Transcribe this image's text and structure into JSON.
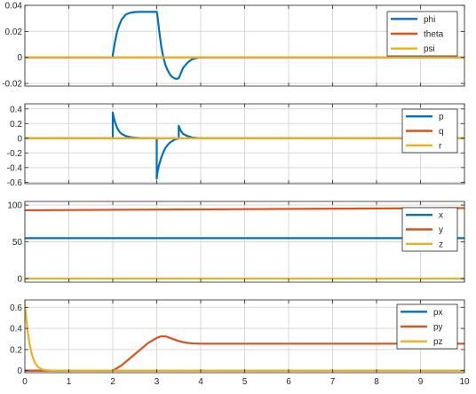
{
  "colors": {
    "series1": "#0072BD",
    "series2": "#D95319",
    "series3": "#EDB120",
    "grid": "#d9d9d9",
    "axis": "#262626"
  },
  "chart_data": [
    {
      "type": "line",
      "xlim": [
        0,
        10
      ],
      "ylim": [
        -0.022,
        0.04
      ],
      "yticks": [
        -0.02,
        0,
        0.02,
        0.04
      ],
      "ytick_labels": [
        "-0.02",
        "0",
        "0.02",
        "0.04"
      ],
      "grid": true,
      "show_xtick_labels": false,
      "legend": {
        "placement": "top-right",
        "entries": [
          "phi",
          "theta",
          "psi"
        ]
      },
      "series": [
        {
          "name": "phi",
          "color_key": "series1",
          "x": [
            0,
            2.0,
            2.0,
            2.05,
            2.1,
            2.15,
            2.2,
            2.3,
            2.4,
            2.5,
            2.6,
            2.7,
            2.8,
            2.9,
            3.0,
            3.02,
            3.05,
            3.1,
            3.15,
            3.2,
            3.25,
            3.3,
            3.35,
            3.4,
            3.45,
            3.5,
            3.55,
            3.6,
            3.7,
            3.8,
            3.9,
            4.0,
            10
          ],
          "y": [
            0,
            0,
            0.002,
            0.012,
            0.02,
            0.025,
            0.029,
            0.033,
            0.0343,
            0.0348,
            0.035,
            0.035,
            0.035,
            0.035,
            0.035,
            0.031,
            0.022,
            0.009,
            0.0,
            -0.006,
            -0.01,
            -0.013,
            -0.015,
            -0.016,
            -0.0165,
            -0.016,
            -0.012,
            -0.008,
            -0.004,
            -0.0015,
            -0.0005,
            0,
            0
          ]
        },
        {
          "name": "theta",
          "color_key": "series2",
          "x": [
            0,
            10
          ],
          "y": [
            0,
            0
          ]
        },
        {
          "name": "psi",
          "color_key": "series3",
          "x": [
            0,
            10
          ],
          "y": [
            0,
            0
          ]
        }
      ]
    },
    {
      "type": "line",
      "xlim": [
        0,
        10
      ],
      "ylim": [
        -0.62,
        0.47
      ],
      "yticks": [
        -0.6,
        -0.4,
        -0.2,
        0,
        0.2,
        0.4
      ],
      "ytick_labels": [
        "-0.6",
        "-0.4",
        "-0.2",
        "0",
        "0.2",
        "0.4"
      ],
      "grid": true,
      "show_xtick_labels": false,
      "legend": {
        "placement": "top-right",
        "entries": [
          "p",
          "q",
          "r"
        ]
      },
      "series": [
        {
          "name": "p",
          "color_key": "series1",
          "x": [
            0,
            2.0,
            2.0,
            2.02,
            2.05,
            2.1,
            2.15,
            2.2,
            2.3,
            2.4,
            2.5,
            2.6,
            2.7,
            2.8,
            2.9,
            3.0,
            3.0,
            3.02,
            3.05,
            3.1,
            3.15,
            3.2,
            3.25,
            3.3,
            3.35,
            3.4,
            3.45,
            3.5,
            3.5,
            3.52,
            3.55,
            3.6,
            3.7,
            3.8,
            3.9,
            4.0,
            10
          ],
          "y": [
            0,
            0,
            0.35,
            0.29,
            0.22,
            0.14,
            0.09,
            0.06,
            0.03,
            0.015,
            0.008,
            0.004,
            0.002,
            0.001,
            0,
            0,
            -0.55,
            -0.45,
            -0.37,
            -0.27,
            -0.19,
            -0.13,
            -0.09,
            -0.06,
            -0.04,
            -0.02,
            -0.01,
            -0.005,
            0.17,
            0.14,
            0.1,
            0.06,
            0.03,
            0.012,
            0.005,
            0,
            0
          ]
        },
        {
          "name": "q",
          "color_key": "series2",
          "x": [
            0,
            10
          ],
          "y": [
            0,
            0
          ]
        },
        {
          "name": "r",
          "color_key": "series3",
          "x": [
            0,
            10
          ],
          "y": [
            0,
            0
          ]
        }
      ]
    },
    {
      "type": "line",
      "xlim": [
        0,
        10
      ],
      "ylim": [
        -5,
        105
      ],
      "yticks": [
        0,
        50,
        100
      ],
      "ytick_labels": [
        "0",
        "50",
        "100"
      ],
      "grid": true,
      "show_xtick_labels": false,
      "legend": {
        "placement": "top-right",
        "entries": [
          "x",
          "y",
          "z"
        ]
      },
      "series": [
        {
          "name": "x",
          "color_key": "series1",
          "x": [
            0,
            10
          ],
          "y": [
            55,
            55
          ]
        },
        {
          "name": "y",
          "color_key": "series2",
          "x": [
            0,
            10
          ],
          "y": [
            93,
            96
          ]
        },
        {
          "name": "z",
          "color_key": "series3",
          "x": [
            0,
            10
          ],
          "y": [
            0,
            0
          ]
        }
      ]
    },
    {
      "type": "line",
      "xlim": [
        0,
        10
      ],
      "ylim": [
        -0.02,
        0.67
      ],
      "yticks": [
        0,
        0.2,
        0.4,
        0.6
      ],
      "ytick_labels": [
        "0",
        "0.2",
        "0.4",
        "0.6"
      ],
      "xticks": [
        0,
        1,
        2,
        3,
        4,
        5,
        6,
        7,
        8,
        9,
        10
      ],
      "xtick_labels": [
        "0",
        "1",
        "2",
        "3",
        "4",
        "5",
        "6",
        "7",
        "8",
        "9",
        "10"
      ],
      "grid": true,
      "show_xtick_labels": true,
      "legend": {
        "placement": "top-right",
        "entries": [
          "px",
          "py",
          "pz"
        ]
      },
      "series": [
        {
          "name": "px",
          "color_key": "series1",
          "x": [
            0,
            10
          ],
          "y": [
            0,
            0
          ]
        },
        {
          "name": "py",
          "color_key": "series2",
          "x": [
            0,
            2.0,
            2.2,
            2.4,
            2.6,
            2.8,
            3.0,
            3.1,
            3.2,
            3.3,
            3.4,
            3.5,
            3.6,
            3.7,
            3.8,
            4.0,
            4.2,
            4.5,
            5.0,
            10
          ],
          "y": [
            0,
            0,
            0.05,
            0.12,
            0.19,
            0.26,
            0.31,
            0.325,
            0.325,
            0.31,
            0.295,
            0.28,
            0.27,
            0.263,
            0.258,
            0.255,
            0.255,
            0.255,
            0.255,
            0.255
          ]
        },
        {
          "name": "pz",
          "color_key": "series3",
          "x": [
            0,
            0.03,
            0.06,
            0.1,
            0.15,
            0.2,
            0.25,
            0.3,
            0.35,
            0.4,
            0.5,
            0.6,
            0.7,
            10
          ],
          "y": [
            0.63,
            0.5,
            0.38,
            0.27,
            0.17,
            0.1,
            0.06,
            0.035,
            0.02,
            0.01,
            0.004,
            0.001,
            0,
            0
          ]
        }
      ]
    }
  ]
}
